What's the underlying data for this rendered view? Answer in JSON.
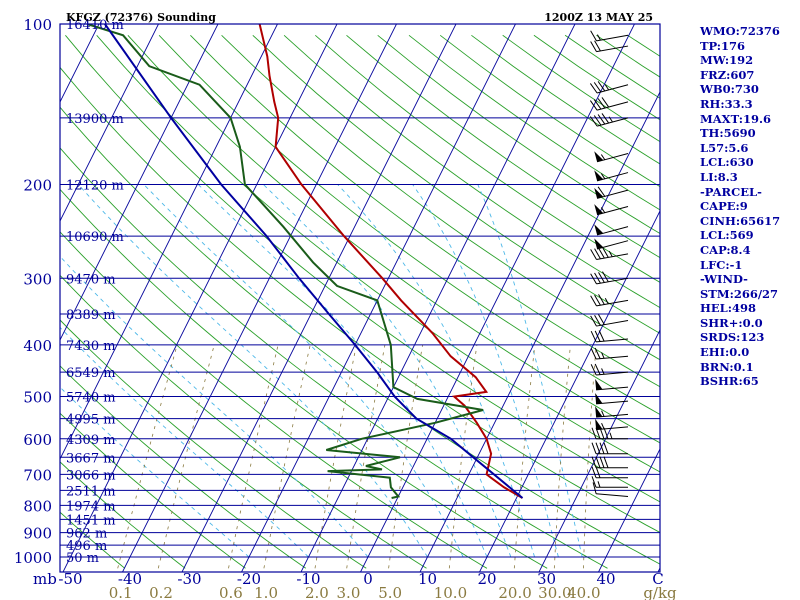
{
  "header": {
    "station": "KFGZ (72376) Sounding",
    "time": "1200Z 13 MAY 25"
  },
  "colors": {
    "background": "#ffffff",
    "frame": "#00009a",
    "isobar": "#00009a",
    "isotherm": "#00009a",
    "dry_adiabat": "#2aa02a",
    "moist_adiabat": "#4db8e8",
    "mixing_ratio": "#8a7a40",
    "temperature": "#b00000",
    "dewpoint": "#1a5c1a",
    "parcel": "#0000a0",
    "wind_barb": "#000000",
    "mixing_label": "#8a7a40"
  },
  "chart_data": {
    "type": "skew-t",
    "y_axis_scale": "log-pressure",
    "pressure_levels": [
      100,
      200,
      300,
      400,
      500,
      600,
      700,
      800,
      900,
      1000
    ],
    "pressure_label_unit": "mb",
    "temperature_ticks": [
      -50,
      -40,
      -30,
      -20,
      -10,
      0,
      10,
      20,
      30,
      40
    ],
    "temperature_axis_end_label": "C",
    "mixing_ratio_labels": [
      "0.1",
      "0.2",
      "0.6",
      "1.0",
      "2.0",
      "3.0",
      "5.0",
      "10.0",
      "20.0",
      "30.0",
      "40.0"
    ],
    "mixing_ratio_unit": "g/kg",
    "heights": [
      {
        "label": "16410 m",
        "p": 100
      },
      {
        "label": "13900 m",
        "p": 150
      },
      {
        "label": "12120 m",
        "p": 200
      },
      {
        "label": "10690 m",
        "p": 250
      },
      {
        "label": "9470 m",
        "p": 300
      },
      {
        "label": "8389 m",
        "p": 350
      },
      {
        "label": "7430 m",
        "p": 400
      },
      {
        "label": "6549 m",
        "p": 450
      },
      {
        "label": "5740 m",
        "p": 500
      },
      {
        "label": "4995 m",
        "p": 550
      },
      {
        "label": "4309 m",
        "p": 600
      },
      {
        "label": "3667 m",
        "p": 650
      },
      {
        "label": "3066 m",
        "p": 700
      },
      {
        "label": "2511 m",
        "p": 750
      },
      {
        "label": "1974 m",
        "p": 800
      },
      {
        "label": "1451 m",
        "p": 850
      },
      {
        "label": "962 m",
        "p": 900
      },
      {
        "label": "496 m",
        "p": 950
      },
      {
        "label": "50 m",
        "p": 1000
      }
    ],
    "series": [
      {
        "name": "Temperature",
        "points": [
          {
            "p": 775,
            "t": 21.0
          },
          {
            "p": 740,
            "t": 17.0
          },
          {
            "p": 710,
            "t": 14.0
          },
          {
            "p": 700,
            "t": 13.0
          },
          {
            "p": 640,
            "t": 12.0
          },
          {
            "p": 600,
            "t": 10.0
          },
          {
            "p": 560,
            "t": 7.0
          },
          {
            "p": 520,
            "t": 3.5
          },
          {
            "p": 500,
            "t": 1.0
          },
          {
            "p": 490,
            "t": 6.0
          },
          {
            "p": 460,
            "t": 3.0
          },
          {
            "p": 420,
            "t": -3.0
          },
          {
            "p": 380,
            "t": -8.0
          },
          {
            "p": 330,
            "t": -16.0
          },
          {
            "p": 300,
            "t": -21.0
          },
          {
            "p": 250,
            "t": -31.0
          },
          {
            "p": 200,
            "t": -42.5
          },
          {
            "p": 170,
            "t": -50.0
          },
          {
            "p": 150,
            "t": -52.0
          },
          {
            "p": 140,
            "t": -54.0
          },
          {
            "p": 125,
            "t": -57.0
          },
          {
            "p": 115,
            "t": -59.0
          },
          {
            "p": 100,
            "t": -63.0
          }
        ]
      },
      {
        "name": "Dewpoint",
        "points": [
          {
            "p": 775,
            "t": -1.0
          },
          {
            "p": 770,
            "t": 0.0
          },
          {
            "p": 740,
            "t": -2.0
          },
          {
            "p": 710,
            "t": -3.0
          },
          {
            "p": 690,
            "t": -14.0
          },
          {
            "p": 685,
            "t": -5.0
          },
          {
            "p": 675,
            "t": -8.0
          },
          {
            "p": 650,
            "t": -3.0
          },
          {
            "p": 630,
            "t": -16.0
          },
          {
            "p": 600,
            "t": -11.0
          },
          {
            "p": 560,
            "t": 0.0
          },
          {
            "p": 530,
            "t": 7.0
          },
          {
            "p": 505,
            "t": -5.0
          },
          {
            "p": 480,
            "t": -10.0
          },
          {
            "p": 400,
            "t": -14.0
          },
          {
            "p": 330,
            "t": -20.0
          },
          {
            "p": 310,
            "t": -28.0
          },
          {
            "p": 280,
            "t": -34.0
          },
          {
            "p": 240,
            "t": -42.0
          },
          {
            "p": 200,
            "t": -52.0
          },
          {
            "p": 170,
            "t": -56.0
          },
          {
            "p": 150,
            "t": -60.0
          },
          {
            "p": 130,
            "t": -68.0
          },
          {
            "p": 120,
            "t": -78.0
          },
          {
            "p": 105,
            "t": -85.0
          },
          {
            "p": 100,
            "t": -92.0
          }
        ]
      },
      {
        "name": "Parcel",
        "points": [
          {
            "p": 775,
            "t": 21.0
          },
          {
            "p": 600,
            "t": 4.0
          },
          {
            "p": 550,
            "t": -3.5
          },
          {
            "p": 500,
            "t": -9.0
          },
          {
            "p": 450,
            "t": -14.0
          },
          {
            "p": 400,
            "t": -20.0
          },
          {
            "p": 350,
            "t": -27.0
          },
          {
            "p": 300,
            "t": -35.0
          },
          {
            "p": 250,
            "t": -44.0
          },
          {
            "p": 200,
            "t": -56.0
          },
          {
            "p": 150,
            "t": -70.0
          },
          {
            "p": 100,
            "t": -89.0
          }
        ]
      }
    ],
    "wind_barbs": [
      {
        "p": 105,
        "dir": 260,
        "speed": 15
      },
      {
        "p": 110,
        "dir": 260,
        "speed": 20
      },
      {
        "p": 130,
        "dir": 255,
        "speed": 35
      },
      {
        "p": 140,
        "dir": 255,
        "speed": 40
      },
      {
        "p": 150,
        "dir": 255,
        "speed": 45
      },
      {
        "p": 175,
        "dir": 255,
        "speed": 55
      },
      {
        "p": 190,
        "dir": 255,
        "speed": 55
      },
      {
        "p": 205,
        "dir": 255,
        "speed": 60
      },
      {
        "p": 220,
        "dir": 255,
        "speed": 55
      },
      {
        "p": 240,
        "dir": 255,
        "speed": 50
      },
      {
        "p": 255,
        "dir": 255,
        "speed": 50
      },
      {
        "p": 270,
        "dir": 260,
        "speed": 45
      },
      {
        "p": 300,
        "dir": 260,
        "speed": 40
      },
      {
        "p": 330,
        "dir": 260,
        "speed": 35
      },
      {
        "p": 360,
        "dir": 260,
        "speed": 30
      },
      {
        "p": 390,
        "dir": 265,
        "speed": 30
      },
      {
        "p": 420,
        "dir": 265,
        "speed": 25
      },
      {
        "p": 450,
        "dir": 265,
        "speed": 25
      },
      {
        "p": 480,
        "dir": 265,
        "speed": 50
      },
      {
        "p": 510,
        "dir": 265,
        "speed": 50
      },
      {
        "p": 540,
        "dir": 265,
        "speed": 55
      },
      {
        "p": 570,
        "dir": 265,
        "speed": 55
      },
      {
        "p": 600,
        "dir": 270,
        "speed": 45
      },
      {
        "p": 640,
        "dir": 270,
        "speed": 40
      },
      {
        "p": 680,
        "dir": 270,
        "speed": 40
      },
      {
        "p": 710,
        "dir": 270,
        "speed": 20
      },
      {
        "p": 740,
        "dir": 270,
        "speed": 15
      },
      {
        "p": 770,
        "dir": 275,
        "speed": 10
      }
    ]
  },
  "stats": [
    "WMO:72376",
    "TP:176",
    "MW:192",
    "FRZ:607",
    "WB0:730",
    "RH:33.3",
    "MAXT:19.6",
    "TH:5690",
    "L57:5.6",
    "LCL:630",
    "LI:8.3",
    "-PARCEL-",
    "CAPE:9",
    "CINH:65617",
    "LCL:569",
    "CAP:8.4",
    "LFC:-1",
    "-WIND-",
    "STM:266/27",
    "HEL:498",
    "SHR+:0.0",
    "SRDS:123",
    "EHI:0.0",
    "BRN:0.1",
    "BSHR:65"
  ]
}
